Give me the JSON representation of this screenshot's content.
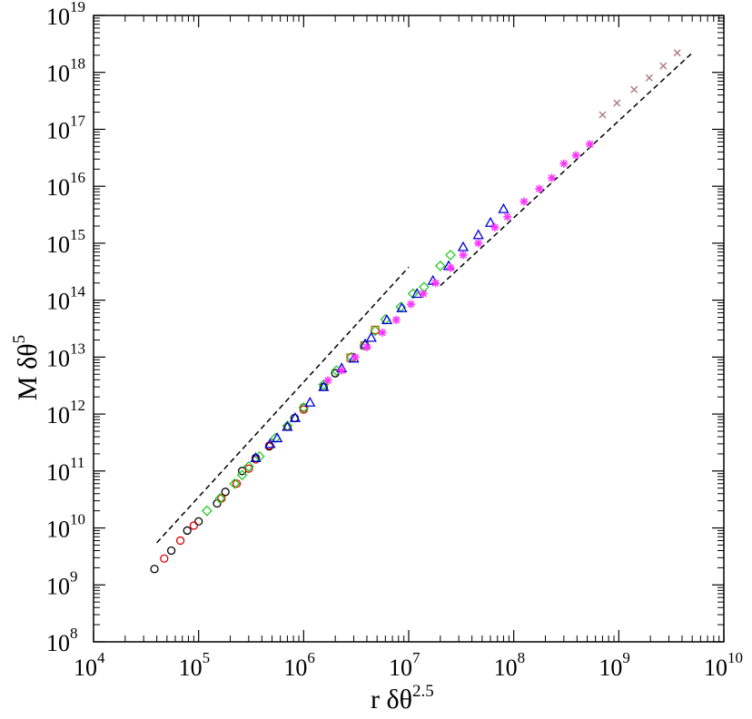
{
  "chart_data": {
    "type": "scatter",
    "title": "",
    "xlabel": {
      "base": "r δθ",
      "exponent": "2.5"
    },
    "ylabel": {
      "base": "M δθ",
      "exponent": "5"
    },
    "xscale": "log",
    "yscale": "log",
    "xlim": [
      10000,
      10000000000
    ],
    "ylim": [
      100000000,
      10000000000000000000
    ],
    "grid": false,
    "legend": "none",
    "x_ticks": [
      {
        "base": "10",
        "exp": "4",
        "value": 10000
      },
      {
        "base": "10",
        "exp": "5",
        "value": 100000
      },
      {
        "base": "10",
        "exp": "6",
        "value": 1000000
      },
      {
        "base": "10",
        "exp": "7",
        "value": 10000000
      },
      {
        "base": "10",
        "exp": "8",
        "value": 100000000
      },
      {
        "base": "10",
        "exp": "9",
        "value": 1000000000
      },
      {
        "base": "10",
        "exp": "10",
        "value": 10000000000
      }
    ],
    "y_ticks": [
      {
        "base": "10",
        "exp": "8",
        "value": 100000000.0
      },
      {
        "base": "10",
        "exp": "9",
        "value": 1000000000.0
      },
      {
        "base": "10",
        "exp": "10",
        "value": 10000000000.0
      },
      {
        "base": "10",
        "exp": "11",
        "value": 100000000000.0
      },
      {
        "base": "10",
        "exp": "12",
        "value": 1000000000000.0
      },
      {
        "base": "10",
        "exp": "13",
        "value": 10000000000000.0
      },
      {
        "base": "10",
        "exp": "14",
        "value": 100000000000000.0
      },
      {
        "base": "10",
        "exp": "15",
        "value": 1000000000000000.0
      },
      {
        "base": "10",
        "exp": "16",
        "value": 1e+16
      },
      {
        "base": "10",
        "exp": "17",
        "value": 1e+17
      },
      {
        "base": "10",
        "exp": "18",
        "value": 1e+18
      },
      {
        "base": "10",
        "exp": "19",
        "value": 1e+19
      }
    ],
    "series": [
      {
        "marker": "circle",
        "color": "#000000",
        "points": [
          [
            38000,
            1900000000.0
          ],
          [
            55000,
            4000000000.0
          ],
          [
            78000,
            9000000000.0
          ],
          [
            100000,
            13000000000.0
          ],
          [
            150000,
            27000000000.0
          ],
          [
            180000,
            43000000000.0
          ],
          [
            260000,
            100000000000.0
          ],
          [
            350000,
            170000000000.0
          ],
          [
            470000,
            270000000000.0
          ],
          [
            700000,
            600000000000.0
          ],
          [
            820000,
            850000000000.0
          ],
          [
            1000000,
            1300000000000.0
          ],
          [
            1550000,
            3000000000000.0
          ],
          [
            2000000,
            5200000000000.0
          ]
        ]
      },
      {
        "marker": "circle",
        "color": "#e00000",
        "points": [
          [
            47000,
            2900000000.0
          ],
          [
            67000,
            6000000000.0
          ],
          [
            90000,
            11000000000.0
          ],
          [
            165000,
            33000000000.0
          ],
          [
            230000,
            60000000000.0
          ],
          [
            300000,
            110000000000.0
          ],
          [
            350000,
            160000000000.0
          ],
          [
            470000,
            280000000000.0
          ],
          [
            700000,
            600000000000.0
          ],
          [
            1000000,
            1200000000000.0
          ]
        ]
      },
      {
        "marker": "diamond",
        "color": "#22cc22",
        "points": [
          [
            120000,
            20000000000.0
          ],
          [
            160000,
            33000000000.0
          ],
          [
            220000,
            60000000000.0
          ],
          [
            260000,
            85000000000.0
          ],
          [
            300000,
            120000000000.0
          ],
          [
            380000,
            180000000000.0
          ],
          [
            540000,
            380000000000.0
          ],
          [
            700000,
            620000000000.0
          ],
          [
            1000000,
            1300000000000.0
          ],
          [
            1550000,
            3300000000000.0
          ],
          [
            2050000,
            5800000000000.0
          ],
          [
            2850000,
            10000000000000.0
          ],
          [
            3800000,
            16000000000000.0
          ],
          [
            4800000,
            29000000000000.0
          ],
          [
            6000000,
            46000000000000.0
          ],
          [
            8400000,
            76000000000000.0
          ],
          [
            11000000,
            130000000000000.0
          ],
          [
            14000000,
            170000000000000.0
          ],
          [
            20000000,
            400000000000000.0
          ],
          [
            25000000,
            620000000000000.0
          ]
        ]
      },
      {
        "marker": "square",
        "color": "#aa6600",
        "points": [
          [
            2800000,
            9800000000000.0
          ],
          [
            3800000,
            16000000000000.0
          ],
          [
            4800000,
            30000000000000.0
          ]
        ]
      },
      {
        "marker": "triangle",
        "color": "#0000dd",
        "points": [
          [
            350000,
            170000000000.0
          ],
          [
            480000,
            300000000000.0
          ],
          [
            560000,
            380000000000.0
          ],
          [
            700000,
            600000000000.0
          ],
          [
            830000,
            860000000000.0
          ],
          [
            1150000,
            1600000000000.0
          ],
          [
            1550000,
            3000000000000.0
          ],
          [
            2300000,
            6400000000000.0
          ],
          [
            3000000,
            9500000000000.0
          ],
          [
            3850000,
            17000000000000.0
          ],
          [
            4400000,
            22000000000000.0
          ],
          [
            6200000,
            45000000000000.0
          ],
          [
            8600000,
            73000000000000.0
          ],
          [
            12000000,
            130000000000000.0
          ],
          [
            17000000,
            220000000000000.0
          ],
          [
            24000000,
            400000000000000.0
          ],
          [
            33000000,
            860000000000000.0
          ],
          [
            46000000,
            1400000000000000.0
          ],
          [
            60000000,
            2300000000000000.0
          ],
          [
            80000000,
            4000000000000000.0
          ]
        ]
      },
      {
        "marker": "star",
        "color": "#ff33ff",
        "points": [
          [
            1700000,
            3900000000000.0
          ],
          [
            2300000,
            5800000000000.0
          ],
          [
            3100000,
            10000000000000.0
          ],
          [
            4000000,
            15000000000000.0
          ],
          [
            5600000,
            27000000000000.0
          ],
          [
            7600000,
            45000000000000.0
          ],
          [
            10500000,
            85000000000000.0
          ],
          [
            13800000,
            130000000000000.0
          ],
          [
            18000000,
            200000000000000.0
          ],
          [
            25000000,
            370000000000000.0
          ],
          [
            33000000,
            620000000000000.0
          ],
          [
            46000000,
            1000000000000000.0
          ],
          [
            66000000,
            1900000000000000.0
          ],
          [
            87000000,
            2900000000000000.0
          ],
          [
            125000000,
            5400000000000000.0
          ],
          [
            175000000,
            9000000000000000.0
          ],
          [
            230000000,
            1.4e+16
          ],
          [
            300000000,
            2.5e+16
          ],
          [
            390000000,
            3.5e+16
          ],
          [
            530000000,
            5.5e+16
          ]
        ]
      },
      {
        "marker": "cross",
        "color": "#b07878",
        "points": [
          [
            700000000,
            1.8e+17
          ],
          [
            960000000,
            2.9e+17
          ],
          [
            1400000000,
            5e+17
          ],
          [
            1950000000,
            8e+17
          ],
          [
            2650000000,
            1.3e+18
          ],
          [
            3600000000,
            2.2e+18
          ]
        ]
      }
    ],
    "reference_lines": [
      {
        "style": "dashed",
        "color": "#000000",
        "from": [
          40000,
          5500000000.0
        ],
        "to": [
          10000000,
          380000000000000.0
        ]
      },
      {
        "style": "dashed",
        "color": "#000000",
        "from": [
          20000000,
          180000000000000.0
        ],
        "to": [
          5000000000,
          2.2e+18
        ]
      }
    ]
  }
}
